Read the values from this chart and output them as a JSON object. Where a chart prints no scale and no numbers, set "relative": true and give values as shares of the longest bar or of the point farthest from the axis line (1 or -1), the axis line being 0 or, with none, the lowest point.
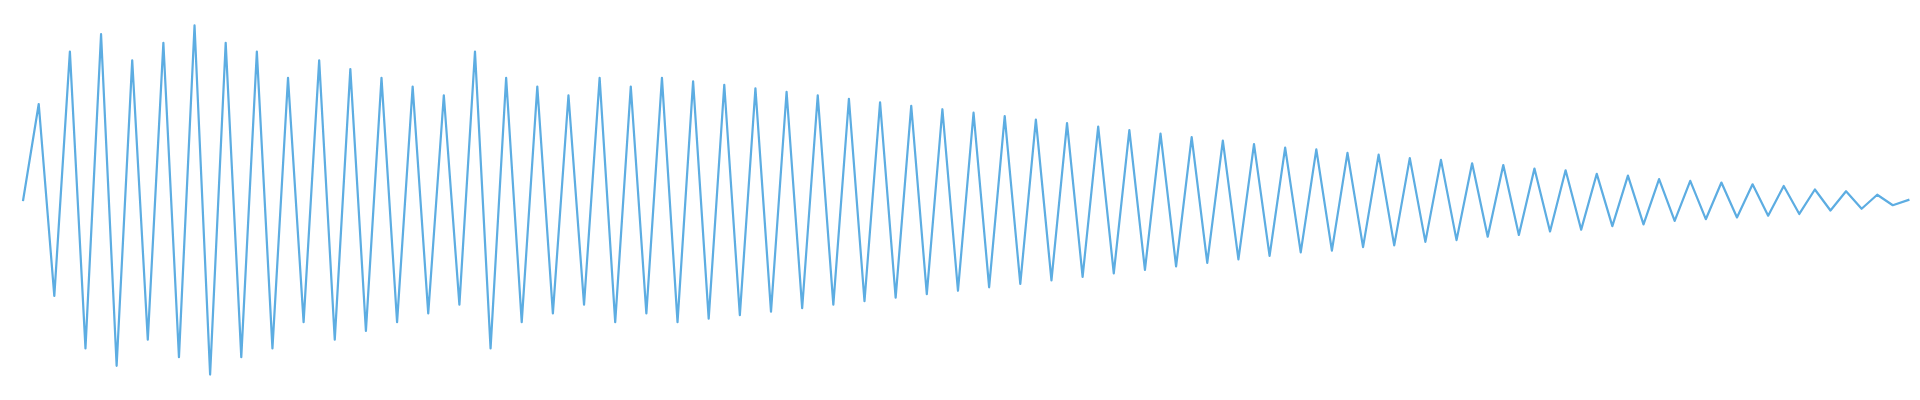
{
  "chart_data": {
    "type": "line",
    "relative": true,
    "categories": [
      null,
      null,
      null,
      null,
      null,
      null,
      null,
      null,
      null,
      null,
      null,
      null,
      null,
      null,
      null,
      null,
      null,
      null,
      null,
      null,
      null,
      null,
      null,
      null,
      null,
      null,
      null,
      null,
      null,
      null,
      null,
      null,
      null,
      null,
      null,
      null,
      null,
      null,
      null,
      null,
      null,
      null,
      null,
      null,
      null,
      null,
      null,
      null,
      null,
      null,
      null,
      null,
      null,
      null,
      null,
      null,
      null,
      null,
      null,
      null,
      null,
      null,
      null,
      null,
      null,
      null,
      null,
      null,
      null,
      null,
      null,
      null,
      null,
      null,
      null,
      null,
      null,
      null,
      null,
      null,
      null,
      null,
      null,
      null,
      null,
      null,
      null,
      null,
      null,
      null,
      null,
      null,
      null,
      null,
      null,
      null,
      null,
      null,
      null,
      null,
      null,
      null,
      null,
      null,
      null,
      null,
      null,
      null,
      null,
      null,
      null,
      null,
      null,
      null,
      null,
      null,
      null,
      null,
      null,
      null,
      null,
      null
    ],
    "series": [
      {
        "color": "#5dade2",
        "values": [
          0.5,
          0.775,
          0.225,
          0.925,
          0.075,
          0.975,
          0.025,
          0.9,
          0.1,
          0.95,
          0.05,
          1,
          0,
          0.95,
          0.05,
          0.925,
          0.075,
          0.85,
          0.15,
          0.9,
          0.1,
          0.875,
          0.125,
          0.85,
          0.15,
          0.825,
          0.175,
          0.8,
          0.2,
          0.925,
          0.075,
          0.85,
          0.15,
          0.825,
          0.175,
          0.8,
          0.2,
          0.85,
          0.15,
          0.825,
          0.175,
          0.85,
          0.15,
          0.84,
          0.16,
          0.83,
          0.17,
          0.82,
          0.18,
          0.81,
          0.19,
          0.8,
          0.2,
          0.79,
          0.21,
          0.78,
          0.22,
          0.77,
          0.23,
          0.76,
          0.24,
          0.75,
          0.25,
          0.74,
          0.26,
          0.73,
          0.27,
          0.72,
          0.28,
          0.71,
          0.29,
          0.7,
          0.3,
          0.69,
          0.31,
          0.68,
          0.32,
          0.67,
          0.33,
          0.66,
          0.34,
          0.65,
          0.35,
          0.645,
          0.355,
          0.635,
          0.365,
          0.63,
          0.37,
          0.62,
          0.38,
          0.615,
          0.385,
          0.605,
          0.395,
          0.6,
          0.4,
          0.59,
          0.41,
          0.585,
          0.415,
          0.575,
          0.425,
          0.57,
          0.43,
          0.56,
          0.44,
          0.555,
          0.445,
          0.55,
          0.45,
          0.545,
          0.455,
          0.54,
          0.46,
          0.53,
          0.47,
          0.525,
          0.475,
          0.515,
          0.485,
          0.5
        ]
      }
    ]
  }
}
